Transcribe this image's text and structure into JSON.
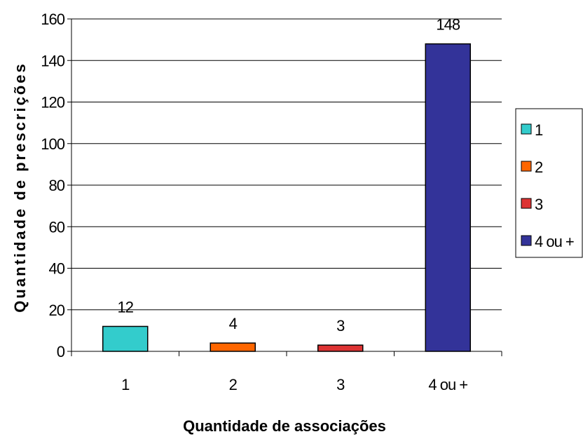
{
  "chart_data": {
    "type": "bar",
    "categories": [
      "1",
      "2",
      "3",
      "4 ou +"
    ],
    "values": [
      12,
      4,
      3,
      148
    ],
    "data_labels": [
      "12",
      "4",
      "3",
      "148"
    ],
    "colors": [
      "#33CCCC",
      "#FF6600",
      "#DD3333",
      "#333399"
    ],
    "xlabel": "Quantidade de associações",
    "ylabel": "Quantidade de prescrições",
    "ylim": [
      0,
      160
    ],
    "yticks": [
      0,
      20,
      40,
      60,
      80,
      100,
      120,
      140,
      160
    ],
    "ytick_labels": [
      "0",
      "20",
      "40",
      "60",
      "80",
      "100",
      "120",
      "140",
      "160"
    ],
    "grid": true,
    "legend": {
      "placement": "right",
      "entries": [
        "1",
        "2",
        "3",
        "4 ou +"
      ]
    }
  }
}
